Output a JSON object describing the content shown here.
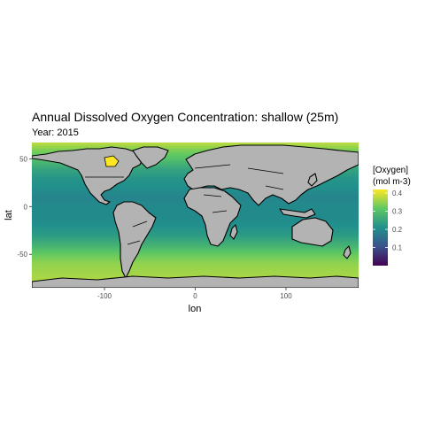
{
  "chart_data": {
    "type": "heatmap",
    "title": "Annual Dissolved Oxygen Concentration: shallow (25m)",
    "subtitle": "Year: 2015",
    "xlabel": "lon",
    "ylabel": "lat",
    "xlim": [
      -180,
      180
    ],
    "ylim": [
      -85,
      67
    ],
    "x_ticks": [
      -100,
      0,
      100
    ],
    "y_ticks": [
      -50,
      0,
      50
    ],
    "grid": true,
    "legend": {
      "title_line1": "[Oxygen]",
      "title_line2": "(mol m-3)",
      "ticks": [
        0.4,
        0.3,
        0.2,
        0.1
      ],
      "limits": [
        0.0,
        0.42
      ],
      "position": "right"
    },
    "colormap": [
      "#440154",
      "#3b528b",
      "#21908c",
      "#5dc863",
      "#fde725"
    ],
    "oxygen_by_latitude": [
      {
        "lat": 67,
        "value": 0.38
      },
      {
        "lat": 60,
        "value": 0.34
      },
      {
        "lat": 50,
        "value": 0.3
      },
      {
        "lat": 40,
        "value": 0.25
      },
      {
        "lat": 30,
        "value": 0.22
      },
      {
        "lat": 20,
        "value": 0.21
      },
      {
        "lat": 10,
        "value": 0.19
      },
      {
        "lat": 0,
        "value": 0.2
      },
      {
        "lat": -10,
        "value": 0.2
      },
      {
        "lat": -20,
        "value": 0.21
      },
      {
        "lat": -30,
        "value": 0.23
      },
      {
        "lat": -40,
        "value": 0.27
      },
      {
        "lat": -50,
        "value": 0.32
      },
      {
        "lat": -60,
        "value": 0.35
      },
      {
        "lat": -70,
        "value": 0.36
      },
      {
        "lat": -80,
        "value": 0.37
      }
    ],
    "hudson_bay_value": 0.42,
    "land_color": "#b3b3b3",
    "panel_background": "#ffffff",
    "grid_color": "#ebebeb"
  }
}
